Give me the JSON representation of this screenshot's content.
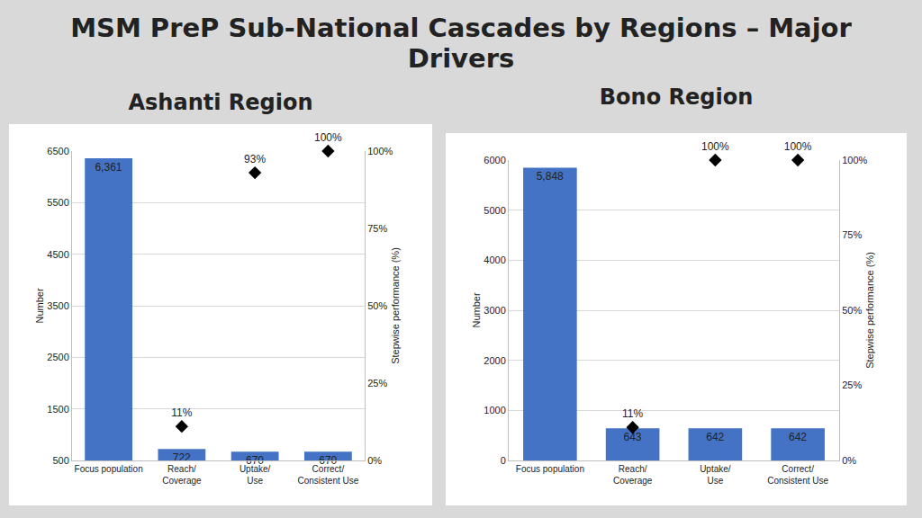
{
  "title": "MSM PreP Sub-National Cascades by Regions – Major Drivers",
  "chart_data": [
    {
      "type": "bar",
      "title": "Ashanti Region",
      "categories": [
        "Focus population",
        "Reach/ Coverage",
        "Uptake/ Use",
        "Correct/ Consistent Use"
      ],
      "y_label": "Number",
      "y2_label": "Stepwise performance (%)",
      "ylim": [
        500,
        6500
      ],
      "yticks": [
        500,
        1500,
        2500,
        3500,
        4500,
        5500,
        6500
      ],
      "y2lim": [
        0,
        100
      ],
      "y2ticks": [
        {
          "value": 0,
          "label": "0%"
        },
        {
          "value": 25,
          "label": "25%"
        },
        {
          "value": 50,
          "label": "50%"
        },
        {
          "value": 75,
          "label": "75%"
        },
        {
          "value": 100,
          "label": "100%"
        }
      ],
      "grid": true,
      "series": [
        {
          "type": "bar",
          "color": "#4472c4",
          "values": [
            6361,
            722,
            670,
            670
          ],
          "value_labels": [
            "6,361",
            "722",
            "670",
            "670"
          ],
          "data_labels": true
        },
        {
          "type": "scatter",
          "axis": "y2",
          "color": "#000000",
          "marker": "diamond",
          "values": [
            null,
            11,
            93,
            100
          ],
          "value_labels": [
            null,
            "11%",
            "93%",
            "100%"
          ],
          "data_labels": true
        }
      ]
    },
    {
      "type": "bar",
      "title": "Bono Region",
      "categories": [
        "Focus population",
        "Reach/ Coverage",
        "Uptake/ Use",
        "Correct/ Consistent Use"
      ],
      "y_label": "Number",
      "y2_label": "Stepwise performance (%)",
      "ylim": [
        0,
        6000
      ],
      "yticks": [
        0,
        1000,
        2000,
        3000,
        4000,
        5000,
        6000
      ],
      "y2lim": [
        0,
        100
      ],
      "y2ticks": [
        {
          "value": 0,
          "label": "0%"
        },
        {
          "value": 25,
          "label": "25%"
        },
        {
          "value": 50,
          "label": "50%"
        },
        {
          "value": 75,
          "label": "75%"
        },
        {
          "value": 100,
          "label": "100%"
        }
      ],
      "grid": true,
      "series": [
        {
          "type": "bar",
          "color": "#4472c4",
          "values": [
            5848,
            643,
            642,
            642
          ],
          "value_labels": [
            "5,848",
            "643",
            "642",
            "642"
          ],
          "data_labels": true
        },
        {
          "type": "scatter",
          "axis": "y2",
          "color": "#000000",
          "marker": "diamond",
          "values": [
            null,
            11,
            100,
            100
          ],
          "value_labels": [
            null,
            "11%",
            "100%",
            "100%"
          ],
          "data_labels": true
        }
      ]
    }
  ]
}
